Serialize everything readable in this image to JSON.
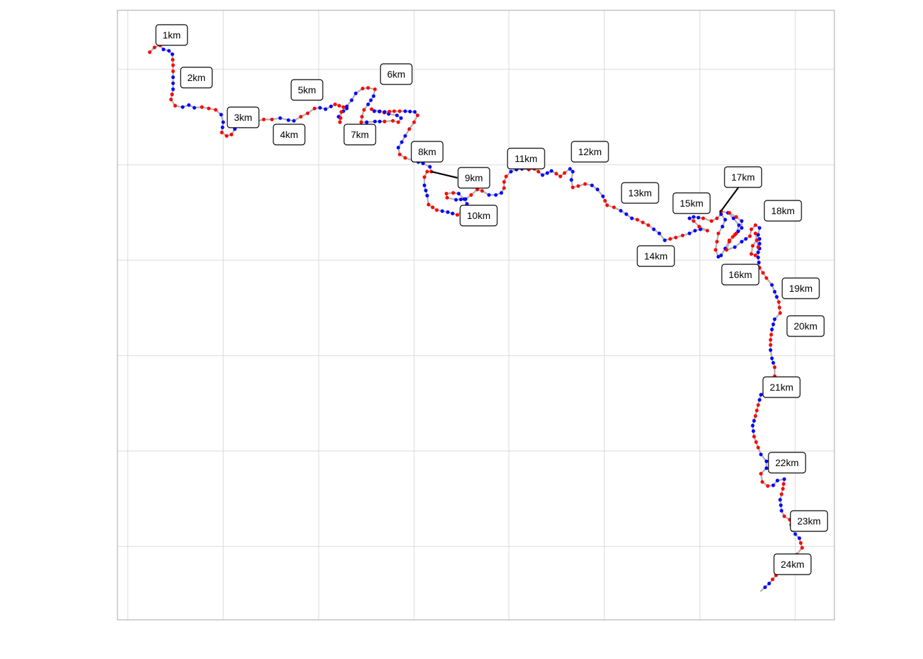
{
  "map": {
    "type": "route-map",
    "grid": true,
    "colors": {
      "route": "#b3b3b3",
      "point_a": "#ff0000",
      "point_b": "#0000ff",
      "grid": "#d9d9d9",
      "panel_border": "#b3b3b3",
      "leader": "#000000"
    },
    "km_labels": [
      "1km",
      "2km",
      "3km",
      "4km",
      "5km",
      "6km",
      "7km",
      "8km",
      "9km",
      "10km",
      "11km",
      "12km",
      "13km",
      "14km",
      "15km",
      "16km",
      "17km",
      "18km",
      "19km",
      "20km",
      "21km",
      "22km",
      "23km",
      "24km"
    ]
  }
}
